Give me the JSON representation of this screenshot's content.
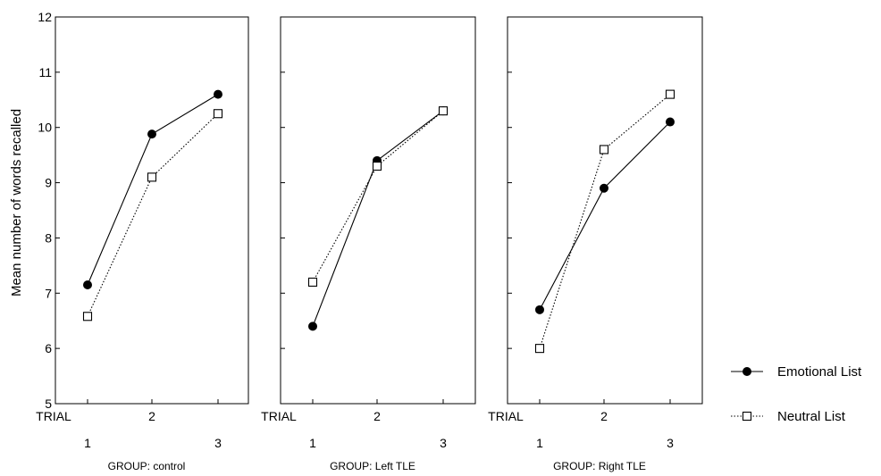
{
  "chart_data": {
    "type": "line",
    "ylabel": "Mean number of words recalled",
    "ylim": [
      5,
      12
    ],
    "yticks": [
      5,
      6,
      7,
      8,
      9,
      10,
      11,
      12
    ],
    "x_axis_label": "TRIAL",
    "categories": [
      "1",
      "2",
      "3"
    ],
    "legend_position": "right",
    "grid": false,
    "series_styles": [
      {
        "marker": "filled-circle",
        "line": "solid",
        "color": "#000000"
      },
      {
        "marker": "open-square",
        "line": "dotted",
        "color": "#000000"
      }
    ],
    "legend": [
      "Emotional List",
      "Neutral List"
    ],
    "panels": [
      {
        "label": "GROUP: control",
        "series": [
          {
            "name": "Emotional List",
            "values": [
              7.15,
              9.88,
              10.6
            ]
          },
          {
            "name": "Neutral List",
            "values": [
              6.58,
              9.1,
              10.25
            ]
          }
        ]
      },
      {
        "label": "GROUP: Left TLE",
        "series": [
          {
            "name": "Emotional List",
            "values": [
              6.4,
              9.4,
              10.3
            ]
          },
          {
            "name": "Neutral List",
            "values": [
              7.2,
              9.3,
              10.3
            ]
          }
        ]
      },
      {
        "label": "GROUP: Right TLE",
        "series": [
          {
            "name": "Emotional List",
            "values": [
              6.7,
              8.9,
              10.1
            ]
          },
          {
            "name": "Neutral List",
            "values": [
              6.0,
              9.6,
              10.6
            ]
          }
        ]
      }
    ]
  }
}
